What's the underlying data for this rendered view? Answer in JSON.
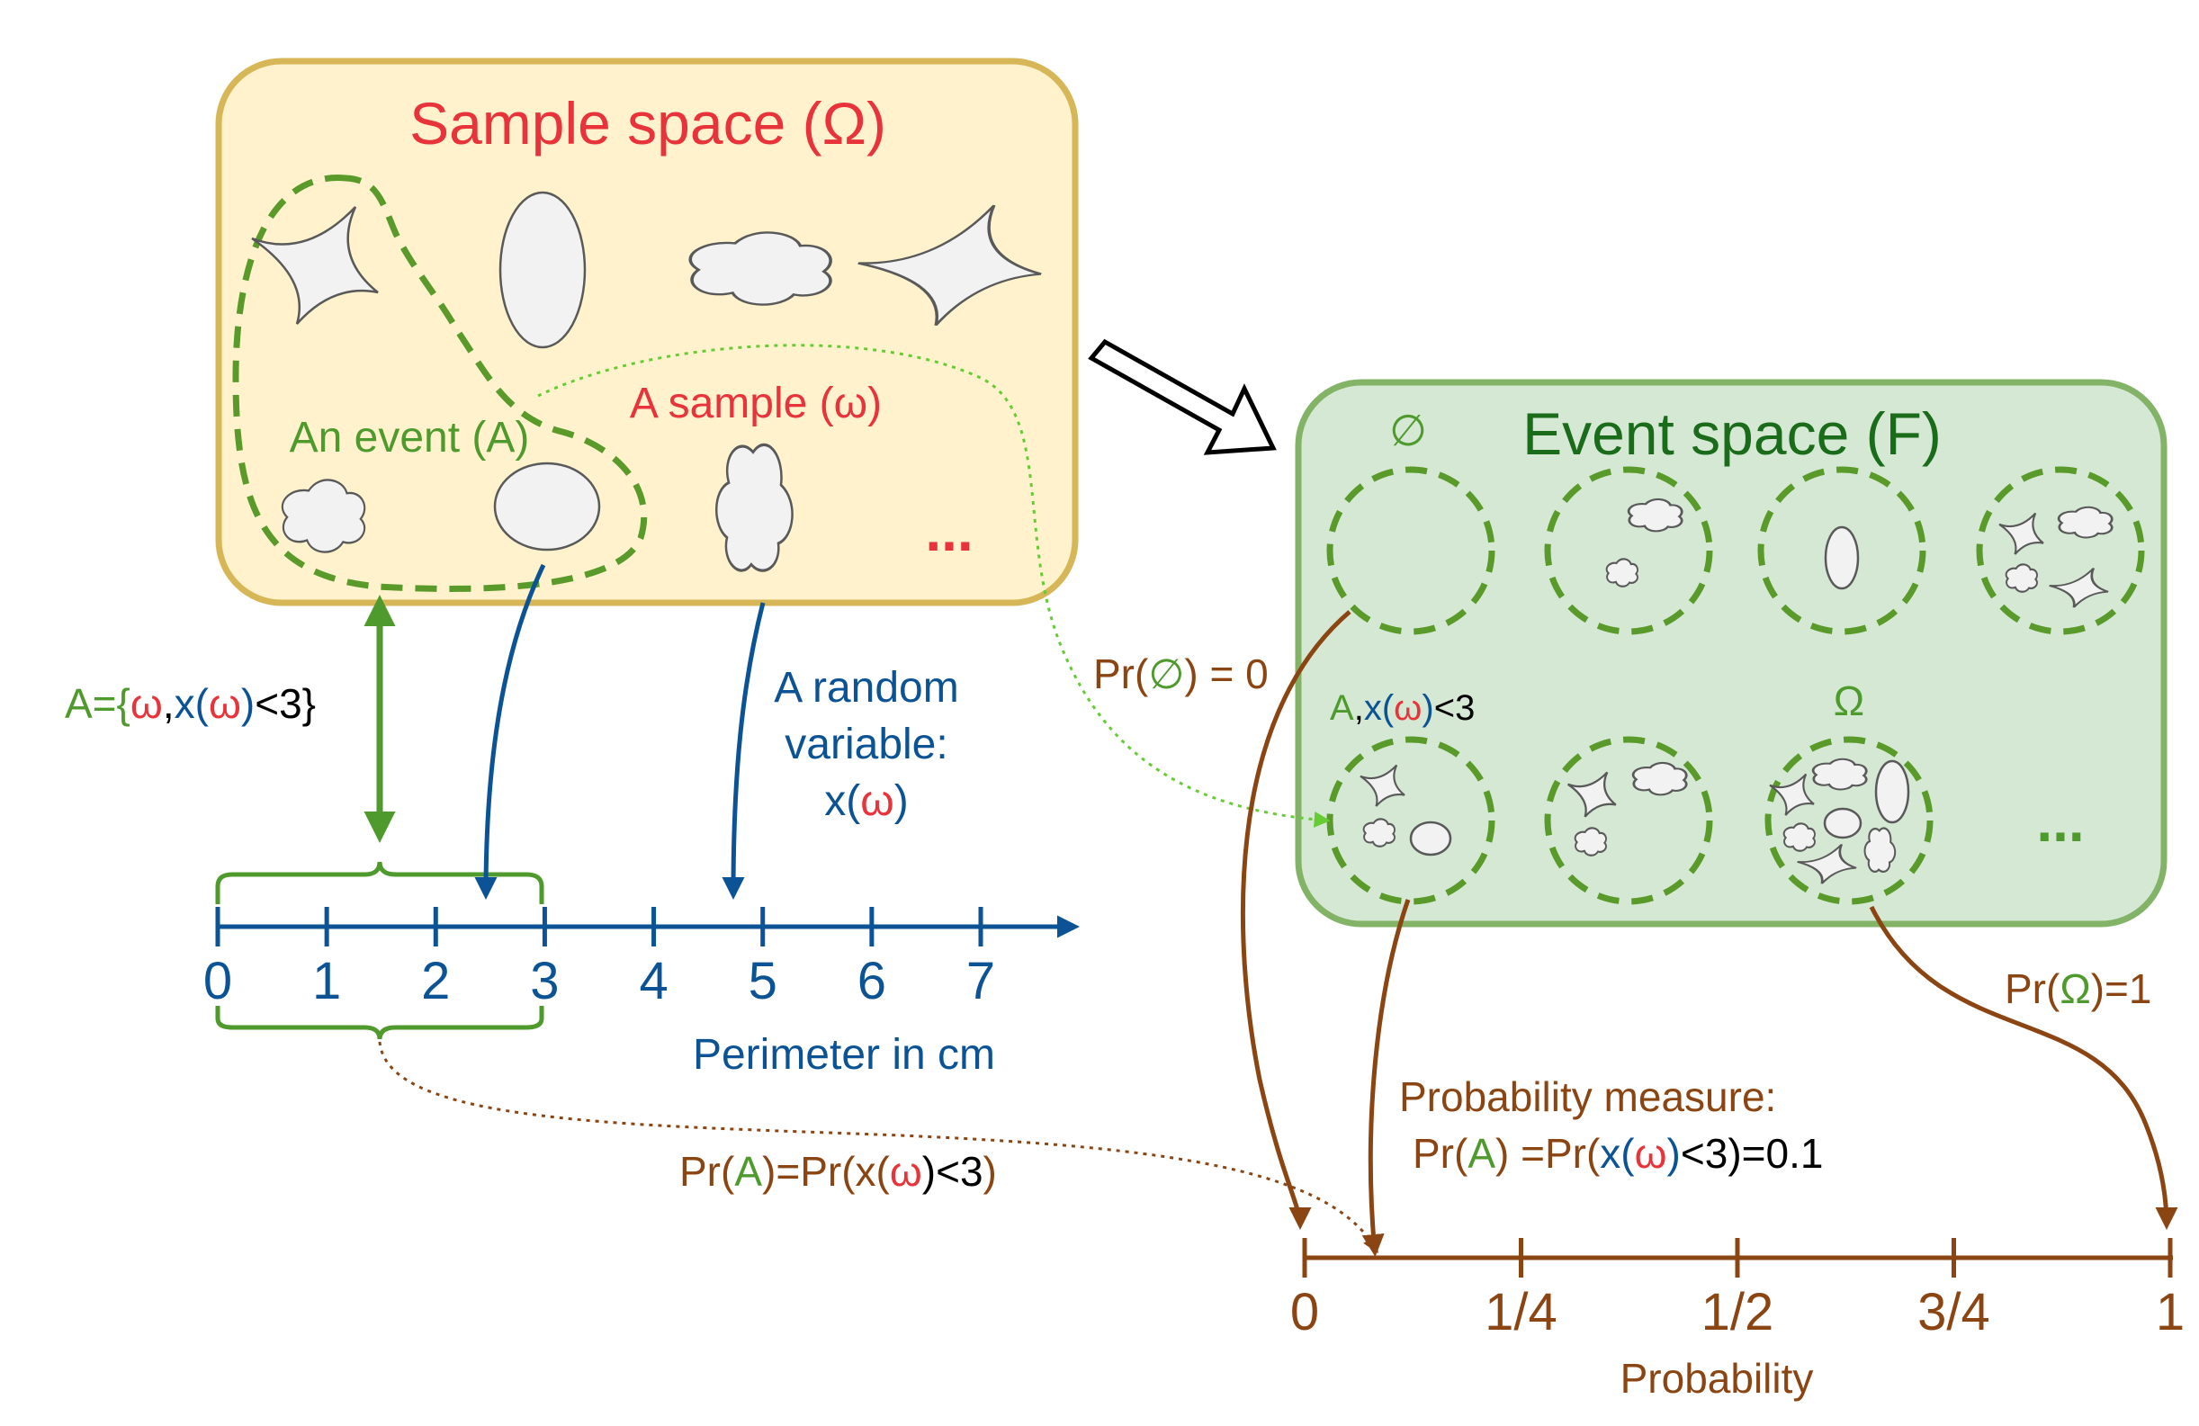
{
  "sample_space": {
    "title": "Sample space (Ω)",
    "event_label": "An event (A)",
    "sample_label": "A sample (ω)",
    "ellipsis": "...",
    "fill": "#fff2cc",
    "stroke": "#d6b656"
  },
  "event_space": {
    "title": "Event space (F)",
    "empty_label": "∅",
    "omega_label": "Ω",
    "a_label": {
      "p1": "A",
      "p2": ",",
      "p3": "x",
      "p4": "(",
      "p5": "ω",
      "p6": ")",
      "p7": "<3"
    },
    "ellipsis": "...",
    "fill": "#d5e8d4",
    "stroke": "#82b366"
  },
  "random_variable": {
    "line1": "A random",
    "line2": "variable:",
    "line3": {
      "p1": "x(",
      "p2": "ω",
      "p3": ")"
    }
  },
  "event_def": {
    "p1": "A={",
    "p2": "ω",
    "p3": ",",
    "p4": "x(",
    "p5": "ω",
    "p6": ")",
    "p7": "<3}"
  },
  "perimeter_axis": {
    "ticks": [
      "0",
      "1",
      "2",
      "3",
      "4",
      "5",
      "6",
      "7"
    ],
    "label": "Perimeter in cm",
    "color": "#0b5394"
  },
  "pr_a_left": {
    "p1": "Pr(",
    "p2": "A",
    "p3": ")=Pr(x(",
    "p4": "ω",
    "p5": ")<3",
    "p6": ")"
  },
  "pr_empty": {
    "p1": "Pr(",
    "p2": "∅",
    "p3": ") = 0"
  },
  "pr_omega": {
    "p1": "Pr(",
    "p2": "Ω",
    "p3": ")=1"
  },
  "probability_measure": {
    "line1": "Probability measure:",
    "line2": {
      "p1": "Pr(",
      "p2": "A",
      "p3": ") =Pr(",
      "p4": "x",
      "p5": "(",
      "p6": "ω",
      "p7": ")",
      "p8": "<3",
      "p9": ")=0.1"
    }
  },
  "probability_axis": {
    "ticks": [
      "0",
      "1/4",
      "1/2",
      "3/4",
      "1"
    ],
    "label": "Probability",
    "color": "#8b4513"
  },
  "colors": {
    "red": "#e8333a",
    "green": "#4f9a2d",
    "dark_green": "#1a6b1a",
    "blue": "#0b5394",
    "brown": "#8b4513",
    "black": "#000000"
  }
}
